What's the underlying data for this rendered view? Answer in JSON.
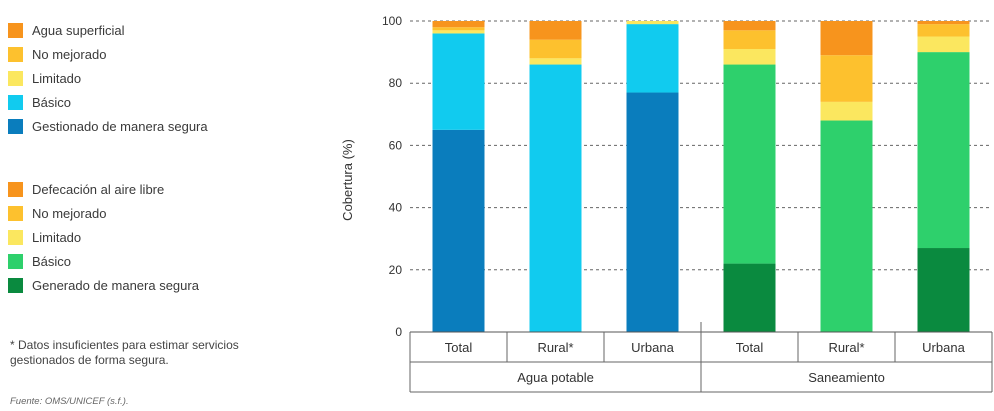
{
  "legends": {
    "water": [
      {
        "label": "Agua superficial",
        "color": "#f7941d"
      },
      {
        "label": "No mejorado",
        "color": "#fdc12e"
      },
      {
        "label": "Limitado",
        "color": "#fbe75f"
      },
      {
        "label": "Básico",
        "color": "#11cbef"
      },
      {
        "label": "Gestionado de manera segura",
        "color": "#0a7dbd"
      }
    ],
    "sanitation": [
      {
        "label": "Defecación al aire libre",
        "color": "#f7941d"
      },
      {
        "label": "No mejorado",
        "color": "#fdc12e"
      },
      {
        "label": "Limitado",
        "color": "#fbe75f"
      },
      {
        "label": "Básico",
        "color": "#2ed06c"
      },
      {
        "label": "Generado de manera segura",
        "color": "#0a8a3f"
      }
    ]
  },
  "note": "* Datos insuficientes para estimar servicios gestionados de forma segura.",
  "source": "Fuente: OMS/UNICEF (s.f.).",
  "chart_data": {
    "type": "bar",
    "stacked": true,
    "ylabel": "Cobertura (%)",
    "ylim": [
      0,
      100
    ],
    "yticks": [
      "0",
      "20",
      "40",
      "60",
      "80",
      "100"
    ],
    "grid": "horizontal dashed",
    "groups": [
      {
        "label": "Agua potable",
        "categories": [
          "Total",
          "Rural*",
          "Urbana"
        ]
      },
      {
        "label": "Saneamiento",
        "categories": [
          "Total",
          "Rural*",
          "Urbana"
        ]
      }
    ],
    "bars": [
      {
        "group": 0,
        "category": "Total",
        "segments": [
          {
            "series": "Gestionado de manera segura",
            "value": 65,
            "color": "#0a7dbd"
          },
          {
            "series": "Básico",
            "value": 31,
            "color": "#11cbef"
          },
          {
            "series": "Limitado",
            "value": 1,
            "color": "#fbe75f"
          },
          {
            "series": "No mejorado",
            "value": 1,
            "color": "#fdc12e"
          },
          {
            "series": "Agua superficial",
            "value": 2,
            "color": "#f7941d"
          }
        ]
      },
      {
        "group": 0,
        "category": "Rural*",
        "segments": [
          {
            "series": "Básico",
            "value": 86,
            "color": "#11cbef"
          },
          {
            "series": "Limitado",
            "value": 2,
            "color": "#fbe75f"
          },
          {
            "series": "No mejorado",
            "value": 6,
            "color": "#fdc12e"
          },
          {
            "series": "Agua superficial",
            "value": 6,
            "color": "#f7941d"
          }
        ]
      },
      {
        "group": 0,
        "category": "Urbana",
        "segments": [
          {
            "series": "Gestionado de manera segura",
            "value": 77,
            "color": "#0a7dbd"
          },
          {
            "series": "Básico",
            "value": 22,
            "color": "#11cbef"
          },
          {
            "series": "Limitado",
            "value": 1,
            "color": "#fbe75f"
          }
        ]
      },
      {
        "group": 1,
        "category": "Total",
        "segments": [
          {
            "series": "Generado de manera segura",
            "value": 22,
            "color": "#0a8a3f"
          },
          {
            "series": "Básico",
            "value": 64,
            "color": "#2ed06c"
          },
          {
            "series": "Limitado",
            "value": 5,
            "color": "#fbe75f"
          },
          {
            "series": "No mejorado",
            "value": 6,
            "color": "#fdc12e"
          },
          {
            "series": "Defecación al aire libre",
            "value": 3,
            "color": "#f7941d"
          }
        ]
      },
      {
        "group": 1,
        "category": "Rural*",
        "segments": [
          {
            "series": "Básico",
            "value": 68,
            "color": "#2ed06c"
          },
          {
            "series": "Limitado",
            "value": 6,
            "color": "#fbe75f"
          },
          {
            "series": "No mejorado",
            "value": 15,
            "color": "#fdc12e"
          },
          {
            "series": "Defecación al aire libre",
            "value": 11,
            "color": "#f7941d"
          }
        ]
      },
      {
        "group": 1,
        "category": "Urbana",
        "segments": [
          {
            "series": "Generado de manera segura",
            "value": 27,
            "color": "#0a8a3f"
          },
          {
            "series": "Básico",
            "value": 63,
            "color": "#2ed06c"
          },
          {
            "series": "Limitado",
            "value": 5,
            "color": "#fbe75f"
          },
          {
            "series": "No mejorado",
            "value": 4,
            "color": "#fdc12e"
          },
          {
            "series": "Defecación al aire libre",
            "value": 1,
            "color": "#f7941d"
          }
        ]
      }
    ]
  }
}
